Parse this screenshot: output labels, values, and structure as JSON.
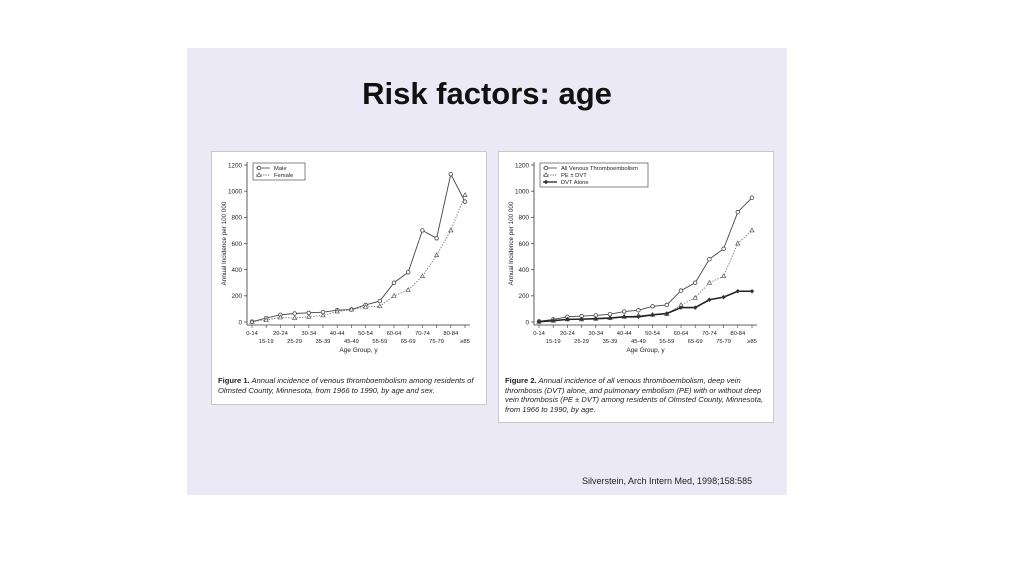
{
  "slide": {
    "title": "Risk factors: age",
    "citation": "Silverstein, Arch Intern Med, 1998;158:585"
  },
  "chart_data": [
    {
      "type": "line",
      "ylabel": "Annual Incidence per 100 000",
      "xlabel": "Age Group, y",
      "ylim": [
        0,
        1200
      ],
      "yticks": [
        0,
        200,
        400,
        600,
        800,
        1000,
        1200
      ],
      "categories": [
        "0-14",
        "15-19",
        "20-24",
        "25-29",
        "30-34",
        "35-39",
        "40-44",
        "45-49",
        "50-54",
        "55-59",
        "60-64",
        "65-69",
        "70-74",
        "75-79",
        "80-84",
        "≥85"
      ],
      "legend_position": "top-left",
      "series": [
        {
          "name": "Male",
          "marker": "circle",
          "style": "solid",
          "values": [
            2,
            30,
            55,
            65,
            70,
            75,
            90,
            95,
            130,
            160,
            300,
            380,
            700,
            640,
            1130,
            920
          ]
        },
        {
          "name": "Female",
          "marker": "triangle",
          "style": "dotted",
          "values": [
            2,
            15,
            35,
            30,
            40,
            50,
            80,
            95,
            115,
            120,
            200,
            245,
            350,
            510,
            700,
            970
          ]
        }
      ],
      "caption_label": "Figure 1.",
      "caption_text": "Annual incidence of venous thromboembolism among residents of Olmsted County, Minnesota, from 1966 to 1990, by age and sex."
    },
    {
      "type": "line",
      "ylabel": "Annual Incidence per 100 000",
      "xlabel": "Age Group, y",
      "ylim": [
        0,
        1200
      ],
      "yticks": [
        0,
        200,
        400,
        600,
        800,
        1000,
        1200
      ],
      "categories": [
        "0-14",
        "15-19",
        "20-24",
        "25-29",
        "30-34",
        "35-39",
        "40-44",
        "45-49",
        "50-54",
        "55-59",
        "60-64",
        "65-69",
        "70-74",
        "75-79",
        "80-84",
        "≥85"
      ],
      "legend_position": "top-left",
      "series": [
        {
          "name": "All Venous Thromboembolism",
          "marker": "circle",
          "style": "solid",
          "values": [
            5,
            20,
            40,
            45,
            50,
            60,
            80,
            90,
            120,
            130,
            240,
            300,
            480,
            560,
            840,
            950
          ]
        },
        {
          "name": "PE ± DVT",
          "marker": "triangle",
          "style": "dotted",
          "values": [
            2,
            10,
            20,
            20,
            25,
            30,
            40,
            50,
            55,
            60,
            130,
            185,
            300,
            350,
            600,
            700
          ]
        },
        {
          "name": "DVT Alone",
          "marker": "diamond",
          "style": "solid-thick",
          "values": [
            2,
            10,
            20,
            22,
            25,
            30,
            40,
            40,
            55,
            65,
            110,
            110,
            170,
            190,
            235,
            235
          ]
        }
      ],
      "caption_label": "Figure 2.",
      "caption_text": "Annual incidence of all venous thromboembolism, deep vein thrombosis (DVT) alone, and pulmonary embolism (PE) with or without deep vein thrombosis (PE ± DVT) among residents of Olmsted County, Minnesota, from 1966 to 1990, by age."
    }
  ]
}
